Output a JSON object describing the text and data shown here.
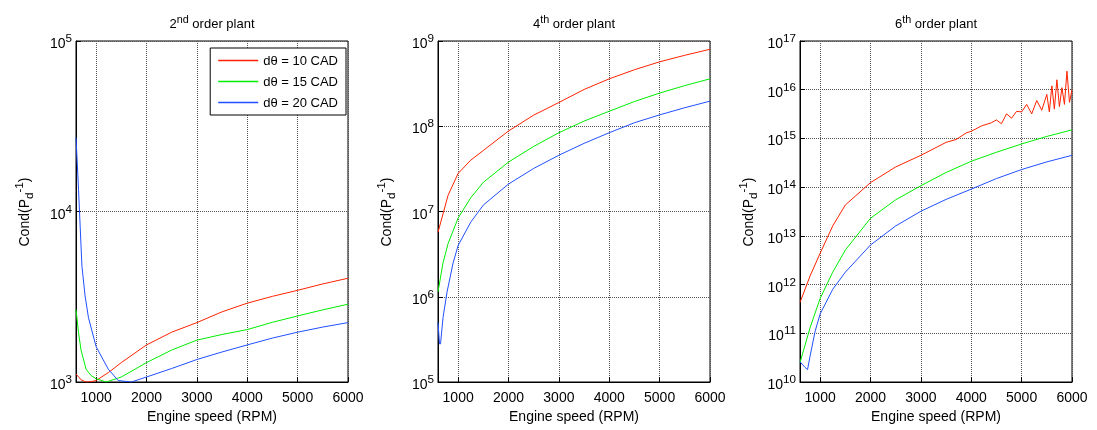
{
  "chart_data": [
    {
      "type": "line",
      "title": "2$^{nd}$ order plant",
      "xlabel": "Engine speed (RPM)",
      "ylabel": "Cond(P$_{d}$$^{-1}$)",
      "log": "y",
      "grid": true,
      "legend": "top right",
      "line_style": "solid",
      "marker": "none",
      "xlim": [
        600,
        6000
      ],
      "xticks": [
        1000,
        2000,
        3000,
        4000,
        5000,
        6000
      ],
      "ylim": [
        1000,
        100000
      ],
      "yticks": [
        {
          "value": 1000,
          "label": "10$^{3}$"
        },
        {
          "value": 10000,
          "label": "10$^{4}$"
        },
        {
          "value": 100000,
          "label": "10$^{5}$"
        }
      ],
      "series": [
        {
          "name": "dθ = 10 CAD",
          "color": "#ff2200",
          "x": [
            600,
            700,
            800,
            900,
            1000,
            1250,
            1500,
            2000,
            2500,
            3000,
            3500,
            4000,
            4500,
            5000,
            5500,
            6000
          ],
          "values": [
            1115,
            1030,
            1000,
            1005,
            1020,
            1140,
            1300,
            1650,
            1960,
            2230,
            2580,
            2900,
            3180,
            3450,
            3760,
            4060
          ]
        },
        {
          "name": "dθ = 15 CAD",
          "color": "#00ee00",
          "x": [
            600,
            650,
            700,
            800,
            900,
            1000,
            1200,
            1500,
            2000,
            2500,
            3000,
            3500,
            4000,
            4500,
            5000,
            5500,
            6000
          ],
          "values": [
            2660,
            1950,
            1540,
            1190,
            1090,
            1045,
            1000,
            1070,
            1300,
            1540,
            1760,
            1900,
            2030,
            2240,
            2440,
            2650,
            2860
          ]
        },
        {
          "name": "dθ = 20 CAD",
          "color": "#2050ff",
          "x": [
            600,
            650,
            718,
            780,
            848,
            1000,
            1240,
            1437,
            1700,
            2000,
            2500,
            3000,
            3500,
            4000,
            4500,
            5000,
            5500,
            6000
          ],
          "values": [
            27200,
            13500,
            4770,
            3200,
            2380,
            1610,
            1190,
            1020,
            1000,
            1070,
            1200,
            1355,
            1500,
            1650,
            1810,
            1960,
            2100,
            2230
          ]
        }
      ]
    },
    {
      "type": "line",
      "title": "4$^{th}$ order plant",
      "xlabel": "Engine speed (RPM)",
      "ylabel": "Cond(P$_{d}$$^{-1}$)",
      "log": "y",
      "grid": true,
      "line_style": "solid",
      "marker": "none",
      "xlim": [
        600,
        6000
      ],
      "xticks": [
        1000,
        2000,
        3000,
        4000,
        5000,
        6000
      ],
      "ylim": [
        100000,
        1000000000
      ],
      "yticks": [
        {
          "value": 100000,
          "label": "10$^{5}$"
        },
        {
          "value": 1000000,
          "label": "10$^{6}$"
        },
        {
          "value": 10000000,
          "label": "10$^{7}$"
        },
        {
          "value": 100000000,
          "label": "10$^{8}$"
        },
        {
          "value": 1000000000,
          "label": "10$^{9}$"
        }
      ],
      "series": [
        {
          "color": "#ff2200",
          "x": [
            600,
            800,
            1000,
            1250,
            1500,
            2000,
            2500,
            3000,
            3500,
            4000,
            4500,
            5000,
            5500,
            6000
          ],
          "values": [
            5700000,
            15500000,
            28000000,
            40000000,
            52000000,
            88000000,
            135000000,
            190000000,
            270000000,
            360000000,
            460000000,
            570000000,
            680000000,
            800000000
          ]
        },
        {
          "color": "#00ee00",
          "x": [
            600,
            700,
            800,
            1000,
            1250,
            1500,
            2000,
            2500,
            3000,
            3500,
            4000,
            4500,
            5000,
            5500,
            6000
          ],
          "values": [
            1140000,
            2500000,
            4200000,
            8400000,
            14500000,
            22000000,
            38000000,
            58000000,
            84000000,
            115000000,
            150000000,
            195000000,
            245000000,
            300000000,
            360000000
          ]
        },
        {
          "color": "#2050ff",
          "x": [
            600,
            630,
            650,
            700,
            780,
            900,
            1000,
            1250,
            1500,
            2000,
            2500,
            3000,
            3500,
            4000,
            4500,
            5000,
            5500,
            6000
          ],
          "values": [
            500000,
            280000,
            280000,
            570000,
            1140000,
            2500000,
            4000000,
            7500000,
            11900000,
            21000000,
            32000000,
            45700000,
            63000000,
            84000000,
            110000000,
            136000000,
            165000000,
            197000000
          ]
        }
      ]
    },
    {
      "type": "line",
      "title": "6$^{th}$ order plant",
      "xlabel": "Engine speed (RPM)",
      "ylabel": "Cond(P$_{d}$$^{-1}$)",
      "log": "y",
      "grid": true,
      "line_style": "solid",
      "marker": "none",
      "xlim": [
        600,
        6000
      ],
      "xticks": [
        1000,
        2000,
        3000,
        4000,
        5000,
        6000
      ],
      "ylim": [
        10000000000.0,
        1e+17
      ],
      "yticks": [
        {
          "value": 10000000000.0,
          "label": "10$^{10}$"
        },
        {
          "value": 100000000000.0,
          "label": "10$^{11}$"
        },
        {
          "value": 1000000000000.0,
          "label": "10$^{12}$"
        },
        {
          "value": 10000000000000.0,
          "label": "10$^{13}$"
        },
        {
          "value": 100000000000000.0,
          "label": "10$^{14}$"
        },
        {
          "value": 1000000000000000.0,
          "label": "10$^{15}$"
        },
        {
          "value": 1e+16,
          "label": "10$^{16}$"
        },
        {
          "value": 1e+17,
          "label": "10$^{17}$"
        }
      ],
      "series": [
        {
          "color": "#ff2200",
          "x": [
            600,
            800,
            1000,
            1250,
            1500,
            2000,
            2500,
            3000,
            3500,
            3700,
            3900,
            4000,
            4200,
            4400,
            4500,
            4600,
            4700,
            4800,
            4900,
            5000,
            5100,
            5200,
            5300,
            5400,
            5500,
            5550,
            5600,
            5650,
            5700,
            5750,
            5800,
            5850,
            5900,
            5950,
            6000
          ],
          "values": [
            430000000000.0,
            1500000000000.0,
            4400000000000.0,
            16000000000000.0,
            43000000000000.0,
            124000000000000.0,
            260000000000000.0,
            450000000000000.0,
            830000000000000.0,
            950000000000000.0,
            1300000000000000.0,
            1400000000000000.0,
            1800000000000000.0,
            2100000000000000.0,
            2400000000000000.0,
            2000000000000000.0,
            3200000000000000.0,
            2600000000000000.0,
            3600000000000000.0,
            3500000000000000.0,
            5000000000000000.0,
            3200000000000000.0,
            6000000000000000.0,
            3800000000000000.0,
            8000000000000000.0,
            3500000000000000.0,
            1.2e+16,
            4000000000000000.0,
            1.6e+16,
            4500000000000000.0,
            1.1e+16,
            5000000000000000.0,
            2.4e+16,
            5500000000000000.0,
            1e+16
          ]
        },
        {
          "color": "#00ee00",
          "x": [
            600,
            800,
            1000,
            1250,
            1500,
            2000,
            2500,
            3000,
            3500,
            4000,
            4500,
            5000,
            5500,
            6000
          ],
          "values": [
            25000000000.0,
            130000000000.0,
            520000000000.0,
            1800000000000.0,
            5100000000000.0,
            23000000000000.0,
            55000000000000.0,
            107000000000000.0,
            200000000000000.0,
            340000000000000.0,
            520000000000000.0,
            770000000000000.0,
            1100000000000000.0,
            1500000000000000.0
          ]
        },
        {
          "color": "#2050ff",
          "x": [
            600,
            700,
            750,
            800,
            900,
            1000,
            1250,
            1500,
            2000,
            2500,
            3000,
            3500,
            4000,
            4500,
            5000,
            5500,
            6000
          ],
          "values": [
            26000000000.0,
            20000000000.0,
            18000000000.0,
            34000000000.0,
            110000000000.0,
            250000000000.0,
            800000000000.0,
            1800000000000.0,
            6500000000000.0,
            16000000000000.0,
            32000000000000.0,
            56000000000000.0,
            91000000000000.0,
            150000000000000.0,
            230000000000000.0,
            330000000000000.0,
            450000000000000.0
          ]
        }
      ]
    }
  ]
}
